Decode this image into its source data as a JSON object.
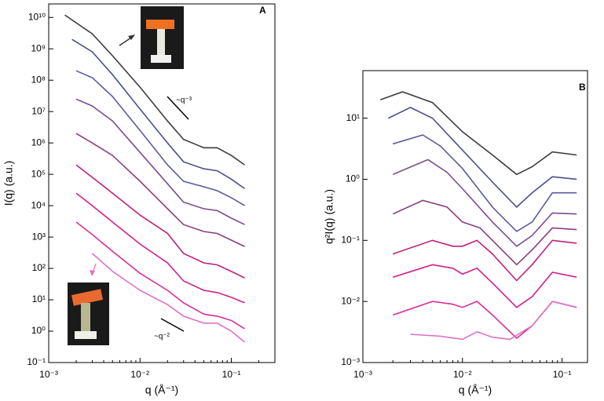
{
  "chart_data": [
    {
      "type": "line",
      "panel_label": "A",
      "xlabel": "q (Å⁻¹)",
      "ylabel": "I(q) (a.u.)",
      "xlog": true,
      "ylog": true,
      "xlim": [
        0.001,
        0.3
      ],
      "ylim": [
        0.1,
        27000000000
      ],
      "xticks": [
        {
          "value": 0.001,
          "label": "10⁻³"
        },
        {
          "value": 0.01,
          "label": "10⁻²"
        },
        {
          "value": 0.1,
          "label": "10⁻¹"
        }
      ],
      "yticks": [
        {
          "value": 0.1,
          "label": "10⁻¹"
        },
        {
          "value": 1,
          "label": "10⁰"
        },
        {
          "value": 10,
          "label": "10¹"
        },
        {
          "value": 100,
          "label": "10²"
        },
        {
          "value": 1000,
          "label": "10³"
        },
        {
          "value": 10000,
          "label": "10⁴"
        },
        {
          "value": 100000,
          "label": "10⁵"
        },
        {
          "value": 1000000,
          "label": "10⁶"
        },
        {
          "value": 10000000,
          "label": "10⁷"
        },
        {
          "value": 100000000,
          "label": "10⁸"
        },
        {
          "value": 1000000000,
          "label": "10⁹"
        },
        {
          "value": 10000000000,
          "label": "10¹⁰"
        }
      ],
      "annotations": [
        "~q⁻³",
        "~q⁻²"
      ],
      "series": [
        {
          "color": "#3c3c3c",
          "x": [
            0.0015,
            0.003,
            0.005,
            0.01,
            0.02,
            0.03,
            0.05,
            0.07,
            0.1,
            0.14
          ],
          "values": [
            12000000000,
            3000000000,
            600000000,
            60000000,
            5000000,
            1300000,
            700000,
            700000,
            400000,
            200000
          ]
        },
        {
          "color": "#4a4f8c",
          "x": [
            0.0018,
            0.003,
            0.005,
            0.01,
            0.02,
            0.03,
            0.05,
            0.07,
            0.1,
            0.14
          ],
          "values": [
            2000000000,
            800000000,
            150000000,
            12000000,
            1000000,
            250000,
            150000,
            130000,
            70000,
            35000
          ]
        },
        {
          "color": "#5a5aa0",
          "x": [
            0.002,
            0.003,
            0.005,
            0.01,
            0.02,
            0.03,
            0.05,
            0.07,
            0.1,
            0.14
          ],
          "values": [
            200000000,
            120000000,
            30000000,
            2500000,
            200000,
            60000,
            40000,
            30000,
            18000,
            10000
          ]
        },
        {
          "color": "#7a4d8e",
          "x": [
            0.002,
            0.003,
            0.005,
            0.01,
            0.02,
            0.03,
            0.05,
            0.07,
            0.1,
            0.14
          ],
          "values": [
            25000000,
            15000000,
            5000000,
            500000,
            50000,
            13000,
            8000,
            7000,
            4000,
            2500
          ]
        },
        {
          "color": "#8e3c7c",
          "x": [
            0.002,
            0.003,
            0.005,
            0.01,
            0.02,
            0.03,
            0.05,
            0.07,
            0.1,
            0.14
          ],
          "values": [
            2000000,
            1000000,
            400000,
            60000,
            8000,
            2500,
            1500,
            1300,
            800,
            500
          ]
        },
        {
          "color": "#c0207a",
          "x": [
            0.002,
            0.003,
            0.005,
            0.01,
            0.02,
            0.03,
            0.05,
            0.07,
            0.1,
            0.14
          ],
          "values": [
            200000,
            80000,
            25000,
            5000,
            1300,
            300,
            150,
            130,
            80,
            50
          ]
        },
        {
          "color": "#d0208a",
          "x": [
            0.002,
            0.003,
            0.005,
            0.01,
            0.02,
            0.03,
            0.05,
            0.07,
            0.1,
            0.14
          ],
          "values": [
            25000,
            10000,
            3000,
            600,
            150,
            40,
            20,
            17,
            12,
            8
          ]
        },
        {
          "color": "#d83098",
          "x": [
            0.002,
            0.003,
            0.005,
            0.01,
            0.02,
            0.03,
            0.05,
            0.07,
            0.1,
            0.14
          ],
          "values": [
            3000,
            1200,
            350,
            70,
            20,
            8,
            3.5,
            3,
            2.2,
            1.2
          ]
        },
        {
          "color": "#e070c4",
          "x": [
            0.003,
            0.005,
            0.01,
            0.02,
            0.03,
            0.05,
            0.07,
            0.1,
            0.14
          ],
          "values": [
            300,
            80,
            20,
            7,
            3,
            1.8,
            1.8,
            1,
            0.45
          ]
        }
      ]
    },
    {
      "type": "line",
      "panel_label": "B",
      "xlabel": "q (Å⁻¹)",
      "ylabel": "q²I(q) (a.u.)",
      "xlog": true,
      "ylog": true,
      "xlim": [
        0.001,
        0.18
      ],
      "ylim": [
        0.001,
        60
      ],
      "xticks": [
        {
          "value": 0.001,
          "label": "10⁻³"
        },
        {
          "value": 0.01,
          "label": "10⁻²"
        },
        {
          "value": 0.1,
          "label": "10⁻¹"
        }
      ],
      "yticks": [
        {
          "value": 0.001,
          "label": "10⁻³"
        },
        {
          "value": 0.01,
          "label": "10⁻²"
        },
        {
          "value": 0.1,
          "label": "10⁻¹"
        },
        {
          "value": 1,
          "label": "10⁰"
        },
        {
          "value": 10,
          "label": "10¹"
        }
      ],
      "series": [
        {
          "color": "#3c3c3c",
          "x": [
            0.0015,
            0.0025,
            0.005,
            0.01,
            0.02,
            0.035,
            0.05,
            0.08,
            0.14
          ],
          "values": [
            20,
            27,
            18,
            6,
            2.5,
            1.2,
            1.6,
            2.8,
            2.5
          ]
        },
        {
          "color": "#4a4f8c",
          "x": [
            0.0018,
            0.003,
            0.005,
            0.01,
            0.02,
            0.035,
            0.05,
            0.08,
            0.14
          ],
          "values": [
            10,
            15,
            10,
            3,
            0.9,
            0.35,
            0.6,
            1.1,
            1
          ]
        },
        {
          "color": "#5a5aa0",
          "x": [
            0.002,
            0.004,
            0.006,
            0.01,
            0.02,
            0.035,
            0.05,
            0.08,
            0.14
          ],
          "values": [
            3.8,
            5.3,
            3.5,
            1.5,
            0.35,
            0.14,
            0.2,
            0.6,
            0.6
          ]
        },
        {
          "color": "#7a4d8e",
          "x": [
            0.002,
            0.0045,
            0.007,
            0.01,
            0.02,
            0.035,
            0.05,
            0.08,
            0.14
          ],
          "values": [
            1.2,
            2.1,
            1.3,
            0.7,
            0.2,
            0.08,
            0.12,
            0.28,
            0.27
          ]
        },
        {
          "color": "#8e3c7c",
          "x": [
            0.002,
            0.004,
            0.007,
            0.01,
            0.015,
            0.02,
            0.035,
            0.05,
            0.08,
            0.14
          ],
          "values": [
            0.27,
            0.45,
            0.35,
            0.2,
            0.16,
            0.1,
            0.04,
            0.07,
            0.16,
            0.15
          ]
        },
        {
          "color": "#c0207a",
          "x": [
            0.002,
            0.005,
            0.008,
            0.01,
            0.014,
            0.02,
            0.035,
            0.05,
            0.08,
            0.14
          ],
          "values": [
            0.06,
            0.1,
            0.08,
            0.08,
            0.1,
            0.06,
            0.022,
            0.04,
            0.1,
            0.09
          ]
        },
        {
          "color": "#d0208a",
          "x": [
            0.002,
            0.005,
            0.008,
            0.01,
            0.014,
            0.02,
            0.035,
            0.05,
            0.08,
            0.14
          ],
          "values": [
            0.025,
            0.04,
            0.035,
            0.028,
            0.035,
            0.02,
            0.008,
            0.012,
            0.03,
            0.025
          ]
        },
        {
          "color": "#d83098",
          "x": [
            0.002,
            0.005,
            0.008,
            0.01,
            0.014,
            0.02,
            0.035,
            0.05,
            0.08,
            0.14
          ],
          "values": [
            0.006,
            0.01,
            0.009,
            0.008,
            0.01,
            0.006,
            0.0025,
            0.004,
            0.01,
            0.008
          ]
        },
        {
          "color": "#e070c4",
          "x": [
            0.003,
            0.006,
            0.01,
            0.014,
            0.02,
            0.03,
            0.05,
            0.08,
            0.14
          ],
          "values": [
            0.0029,
            0.0027,
            0.0024,
            0.0032,
            0.0026,
            0.0024,
            0.004,
            0.01,
            0.008
          ]
        }
      ]
    }
  ]
}
